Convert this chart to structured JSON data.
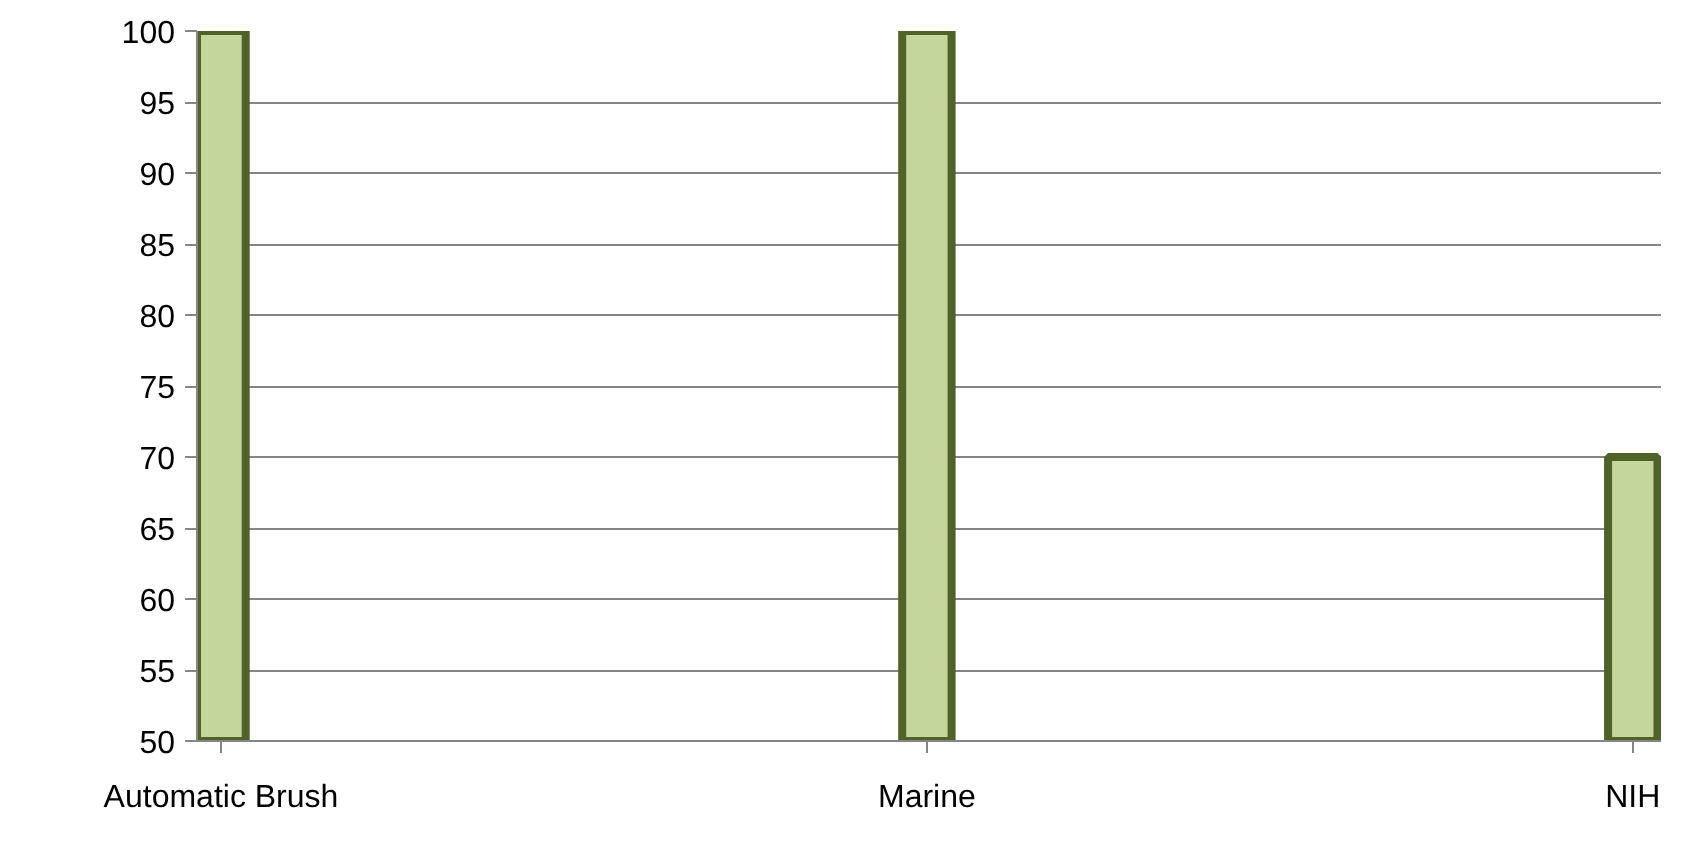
{
  "chart_data": {
    "type": "bar",
    "categories": [
      "Automatic Brush",
      "Marine",
      "NIH"
    ],
    "values": [
      100,
      100,
      70
    ],
    "color": "#c3d69b",
    "ylim": [
      50,
      100
    ],
    "yticks": [
      50,
      55,
      60,
      65,
      70,
      75,
      80,
      85,
      90,
      95,
      100
    ],
    "grid": "y"
  }
}
